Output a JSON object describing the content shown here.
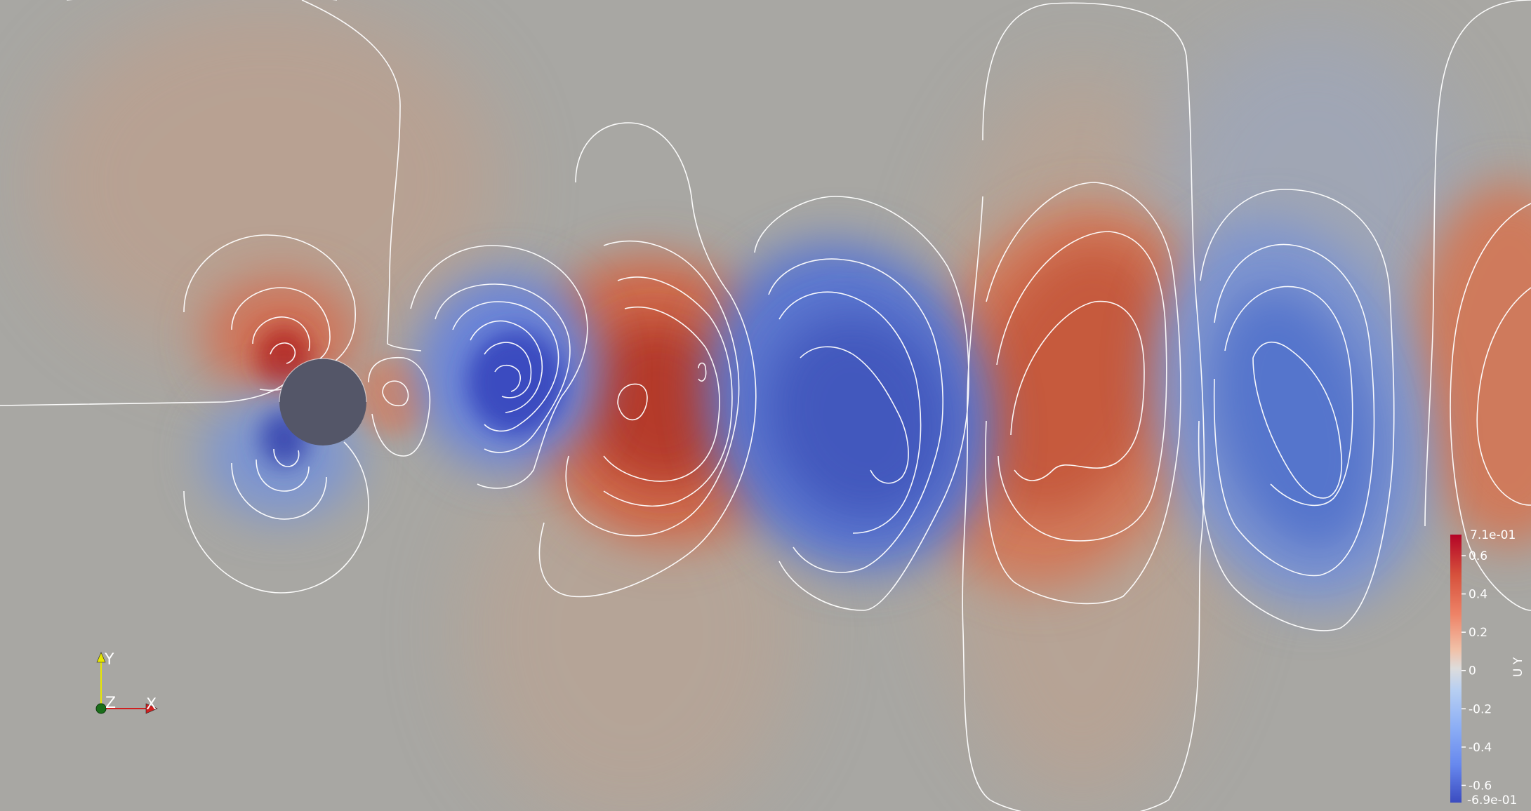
{
  "view": {
    "background": "#a8a7a3",
    "field_name": "U Y",
    "colormap": {
      "name": "Cool to Warm",
      "min_color": "#3b4cc0",
      "mid_color": "#dddcdc",
      "max_color": "#b40426"
    }
  },
  "colorbar": {
    "title": "U Y",
    "range": [
      -0.69,
      0.71
    ],
    "max_label": "7.1e-01",
    "min_label": "-6.9e-01",
    "ticks": [
      {
        "value": 0.6,
        "label": "0.6"
      },
      {
        "value": 0.4,
        "label": "0.4"
      },
      {
        "value": 0.2,
        "label": "0.2"
      },
      {
        "value": 0.0,
        "label": "0"
      },
      {
        "value": -0.2,
        "label": "-0.2"
      },
      {
        "value": -0.4,
        "label": "-0.4"
      },
      {
        "value": -0.6,
        "label": "-0.6"
      }
    ]
  },
  "axes_triad": {
    "y_label": "Y",
    "z_label": "Z",
    "x_label": "X",
    "y_color": "#e8e800",
    "z_color": "#1a6e1a",
    "x_color": "#d02020"
  },
  "obstacle": {
    "shape": "cylinder",
    "color": "#545668"
  },
  "contours": {
    "color": "#ffffff"
  }
}
